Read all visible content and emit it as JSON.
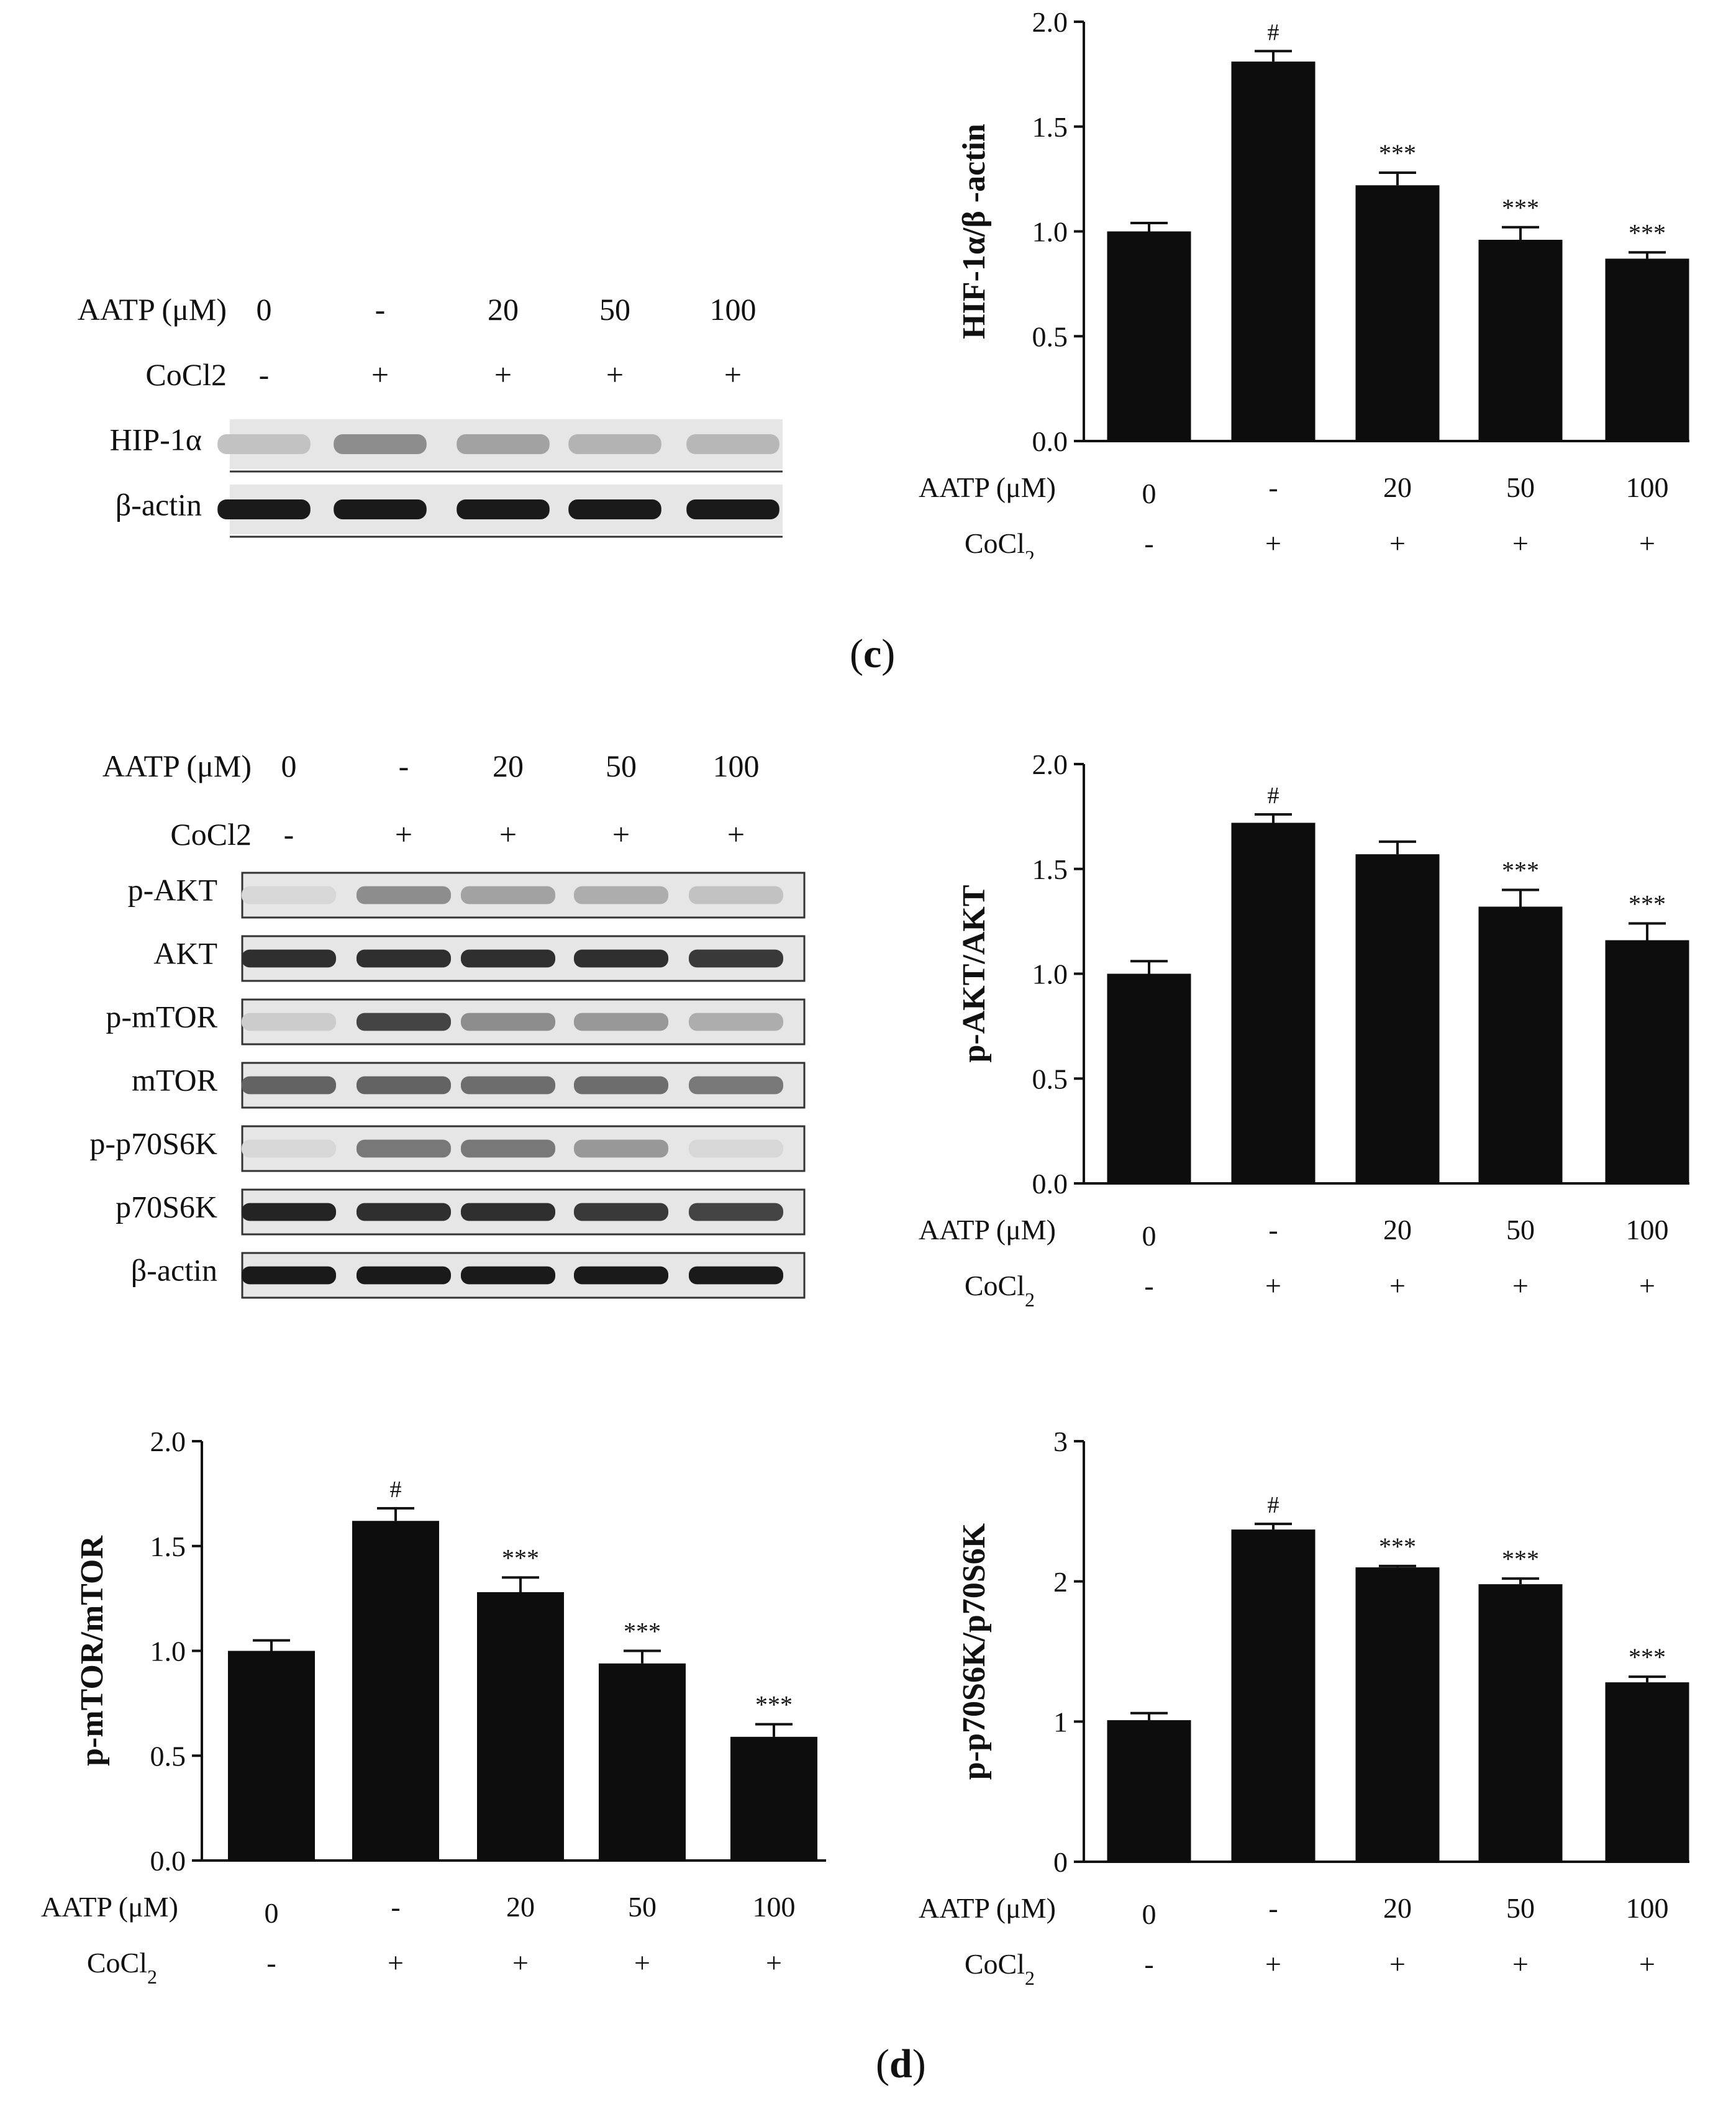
{
  "panels": {
    "c": {
      "label": "c"
    },
    "d": {
      "label": "d"
    }
  },
  "blots": [
    {
      "id": "blot-c",
      "conditions": {
        "row1_label": "AATP (μM)",
        "row1_values": [
          "0",
          "-",
          "20",
          "50",
          "100"
        ],
        "row2_label": "CoCl2",
        "row2_values": [
          "-",
          "+",
          "+",
          "+",
          "+"
        ]
      },
      "rows": [
        {
          "label": "HIP-1α",
          "intensity": [
            0.15,
            0.4,
            0.3,
            0.22,
            0.2
          ]
        },
        {
          "label": "β-actin",
          "intensity": [
            0.95,
            0.95,
            0.95,
            0.95,
            0.95
          ]
        }
      ]
    },
    {
      "id": "blot-d",
      "conditions": {
        "row1_label": "AATP (μM)",
        "row1_values": [
          "0",
          "-",
          "20",
          "50",
          "100"
        ],
        "row2_label": "CoCl2",
        "row2_values": [
          "-",
          "+",
          "+",
          "+",
          "+"
        ]
      },
      "rows": [
        {
          "label": "p-AKT",
          "intensity": [
            0.05,
            0.4,
            0.3,
            0.25,
            0.15
          ]
        },
        {
          "label": "AKT",
          "intensity": [
            0.85,
            0.85,
            0.85,
            0.85,
            0.8
          ]
        },
        {
          "label": "p-mTOR",
          "intensity": [
            0.1,
            0.75,
            0.4,
            0.35,
            0.25
          ]
        },
        {
          "label": "mTOR",
          "intensity": [
            0.6,
            0.6,
            0.55,
            0.55,
            0.5
          ]
        },
        {
          "label": "p-p70S6K",
          "intensity": [
            0.05,
            0.5,
            0.5,
            0.35,
            0.05
          ]
        },
        {
          "label": "p70S6K",
          "intensity": [
            0.9,
            0.85,
            0.85,
            0.8,
            0.75
          ]
        },
        {
          "label": "β-actin",
          "intensity": [
            0.95,
            0.95,
            0.95,
            0.95,
            0.95
          ]
        }
      ]
    }
  ],
  "chart_data": [
    {
      "id": "chart-hif",
      "type": "bar",
      "ylabel": "HIF-1α/β -actin",
      "ylim": [
        0,
        2.0
      ],
      "yticks": [
        "0.0",
        "0.5",
        "1.0",
        "1.5",
        "2.0"
      ],
      "row1_label": "AATP (μM)",
      "row1_values": [
        "0",
        "-",
        "20",
        "50",
        "100"
      ],
      "row2_label": "CoCl",
      "row2_sub": "2",
      "row2_values": [
        "-",
        "+",
        "+",
        "+",
        "+"
      ],
      "values": [
        1.0,
        1.81,
        1.22,
        0.96,
        0.87
      ],
      "errors": [
        0.04,
        0.05,
        0.06,
        0.06,
        0.03
      ],
      "annotations": [
        "",
        "#",
        "***",
        "***",
        "***"
      ],
      "bar_color": "#0d0d0d"
    },
    {
      "id": "chart-akt",
      "type": "bar",
      "ylabel": "p-AKT/AKT",
      "ylim": [
        0,
        2.0
      ],
      "yticks": [
        "0.0",
        "0.5",
        "1.0",
        "1.5",
        "2.0"
      ],
      "row1_label": "AATP (μM)",
      "row1_values": [
        "0",
        "-",
        "20",
        "50",
        "100"
      ],
      "row2_label": "CoCl",
      "row2_sub": "2",
      "row2_values": [
        "-",
        "+",
        "+",
        "+",
        "+"
      ],
      "values": [
        1.0,
        1.72,
        1.57,
        1.32,
        1.16
      ],
      "errors": [
        0.06,
        0.04,
        0.06,
        0.08,
        0.08
      ],
      "annotations": [
        "",
        "#",
        "",
        "***",
        "***"
      ],
      "bar_color": "#0d0d0d"
    },
    {
      "id": "chart-mtor",
      "type": "bar",
      "ylabel": "p-mTOR/mTOR",
      "ylim": [
        0,
        2.0
      ],
      "yticks": [
        "0.0",
        "0.5",
        "1.0",
        "1.5",
        "2.0"
      ],
      "row1_label": "AATP (μM)",
      "row1_values": [
        "0",
        "-",
        "20",
        "50",
        "100"
      ],
      "row2_label": "CoCl",
      "row2_sub": "2",
      "row2_values": [
        "-",
        "+",
        "+",
        "+",
        "+"
      ],
      "values": [
        1.0,
        1.62,
        1.28,
        0.94,
        0.59
      ],
      "errors": [
        0.05,
        0.06,
        0.07,
        0.06,
        0.06
      ],
      "annotations": [
        "",
        "#",
        "***",
        "***",
        "***"
      ],
      "bar_color": "#0d0d0d"
    },
    {
      "id": "chart-p70",
      "type": "bar",
      "ylabel": "p-p70S6K/p70S6K",
      "ylim": [
        0,
        3
      ],
      "yticks": [
        "0",
        "1",
        "2",
        "3"
      ],
      "row1_label": "AATP (μM)",
      "row1_values": [
        "0",
        "-",
        "20",
        "50",
        "100"
      ],
      "row2_label": "CoCl",
      "row2_sub": "2",
      "row2_values": [
        "-",
        "+",
        "+",
        "+",
        "+"
      ],
      "values": [
        1.01,
        2.37,
        2.1,
        1.98,
        1.28
      ],
      "errors": [
        0.05,
        0.04,
        0.01,
        0.04,
        0.04
      ],
      "annotations": [
        "",
        "#",
        "***",
        "***",
        "***"
      ],
      "bar_color": "#0d0d0d"
    }
  ]
}
